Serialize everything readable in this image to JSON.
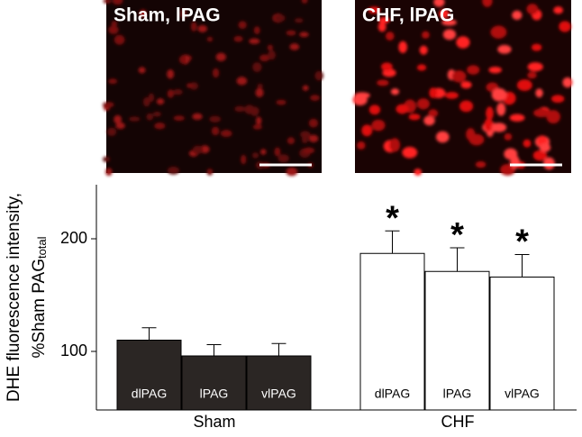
{
  "panels": [
    {
      "label": "Sham, lPAG"
    },
    {
      "label": "CHF, lPAG"
    }
  ],
  "chart_data": {
    "type": "bar",
    "ylabel": [
      "DHE fluorescence intensity,",
      "%Sham PAG"
    ],
    "ylabel_sub": "total",
    "categories": [
      "dlPAG",
      "lPAG",
      "vlPAG"
    ],
    "series": [
      {
        "name": "Sham",
        "color": "#2b2624",
        "label_color": "#ffffff",
        "values": [
          110,
          96,
          96
        ],
        "errors": [
          11,
          10,
          11
        ]
      },
      {
        "name": "CHF",
        "color": "#ffffff",
        "label_color": "#000000",
        "values": [
          187,
          171,
          166
        ],
        "errors": [
          20,
          21,
          20
        ],
        "markers": [
          "*",
          "*",
          "*"
        ]
      }
    ],
    "ylim": [
      48,
      248
    ],
    "yticks": [
      100,
      200
    ]
  }
}
